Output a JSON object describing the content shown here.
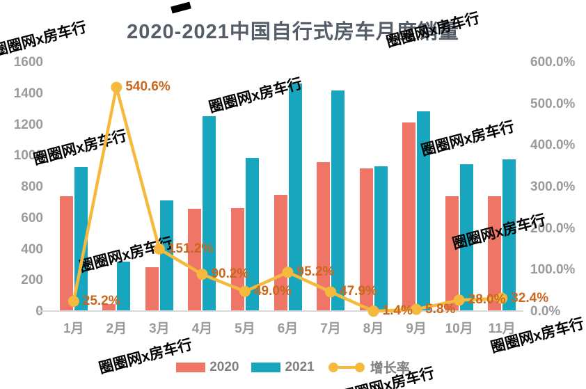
{
  "title": "2020-2021中国自行式房车月度销量",
  "watermark_text": "圈圈网x房车行",
  "colors": {
    "bar_2020": "#ef7567",
    "bar_2021": "#18a6be",
    "growth_line": "#f5b93e",
    "point_label": "#c9671d",
    "axis_text": "#9a9a9a",
    "title_text": "#545d68",
    "legend_text": "#7f7f7f",
    "axis_line": "#d9d9d9"
  },
  "axes": {
    "y_left_ticks": [
      "0",
      "200",
      "400",
      "600",
      "800",
      "1000",
      "1200",
      "1400",
      "1600"
    ],
    "y_right_ticks": [
      "0.0%",
      "100.0%",
      "200.0%",
      "300.0%",
      "400.0%",
      "500.0%",
      "600.0%"
    ],
    "x_labels": [
      "1月",
      "2月",
      "3月",
      "4月",
      "5月",
      "6月",
      "7月",
      "8月",
      "9月",
      "10月",
      "11月"
    ]
  },
  "chart_data": {
    "type": "bar+line",
    "title": "2020-2021中国自行式房车月度销量",
    "categories": [
      "1月",
      "2月",
      "3月",
      "4月",
      "5月",
      "6月",
      "7月",
      "8月",
      "9月",
      "10月",
      "11月"
    ],
    "series": [
      {
        "name": "2020",
        "type": "bar",
        "axis": "left",
        "values": [
          743,
          50,
          285,
          660,
          665,
          750,
          960,
          920,
          1215,
          740,
          740
        ]
      },
      {
        "name": "2021",
        "type": "bar",
        "axis": "left",
        "values": [
          930,
          320,
          715,
          1255,
          990,
          1465,
          1420,
          933,
          1285,
          948,
          980
        ]
      },
      {
        "name": "增长率",
        "type": "line",
        "axis": "right",
        "values": [
          25.2,
          540.6,
          151.2,
          90.2,
          49.0,
          95.2,
          47.9,
          1.4,
          5.8,
          28.0,
          32.4
        ],
        "labels": [
          "25.2%",
          "540.6%",
          "151.2%",
          "90.2%",
          "49.0%",
          "95.2%",
          "47.9%",
          "1.4%",
          "5.8%",
          "28.0%",
          "32.4%"
        ]
      }
    ],
    "left_axis": {
      "min": 0,
      "max": 1600,
      "step": 200
    },
    "right_axis": {
      "min": 0,
      "max": 600,
      "step": 100,
      "unit": "%"
    },
    "grid": false,
    "legend_position": "bottom"
  }
}
